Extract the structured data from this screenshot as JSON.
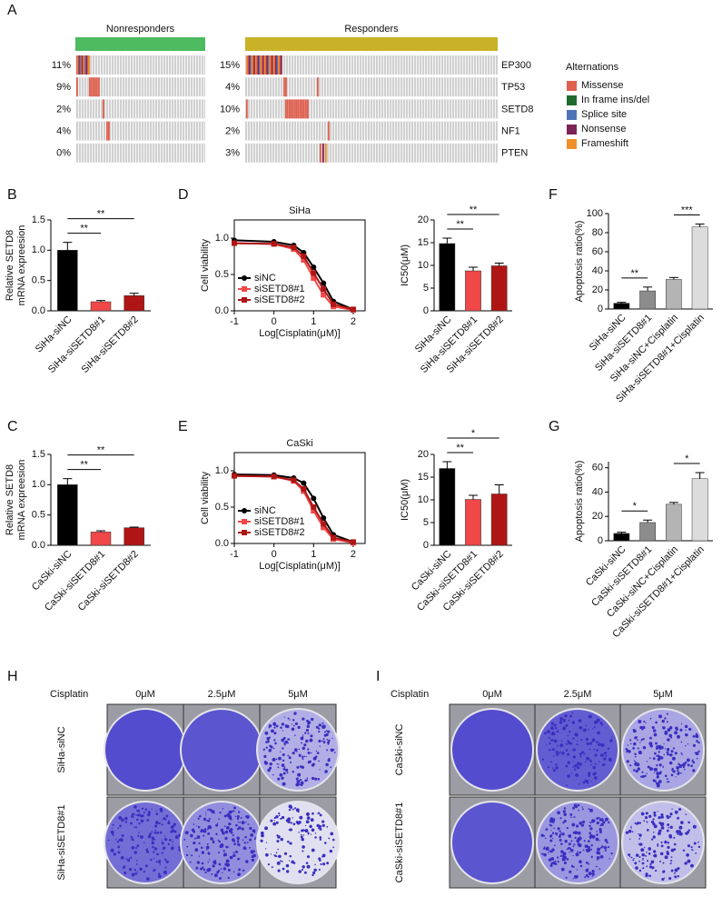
{
  "panel_A": {
    "label": "A",
    "groups": [
      {
        "name": "Nonresponders",
        "color": "#4dbb5f",
        "values": [
          11,
          9,
          2,
          4,
          0
        ],
        "value_labels": [
          "11%",
          "9%",
          "2%",
          "4%",
          "0%"
        ]
      },
      {
        "name": "Responders",
        "color": "#c9b227",
        "values": [
          15,
          4,
          10,
          2,
          3
        ],
        "value_labels": [
          "15%",
          "4%",
          "10%",
          "2%",
          "3%"
        ]
      }
    ],
    "genes": [
      "EP300",
      "TP53",
      "SETD8",
      "NF1",
      "PTEN"
    ],
    "legend": {
      "title": "Alternations",
      "items": [
        {
          "name": "Missense",
          "color": "#e0604f"
        },
        {
          "name": "In frame ins/del",
          "color": "#1e6b2e"
        },
        {
          "name": "Splice site",
          "color": "#4f73b8"
        },
        {
          "name": "Nonsense",
          "color": "#7b2257"
        },
        {
          "name": "Frameshift",
          "color": "#f0902a"
        }
      ]
    }
  },
  "chart_data": [
    {
      "panel": "B",
      "type": "bar",
      "ylabel": [
        "Relative SETD8",
        "mRNA expreesion"
      ],
      "categories": [
        "SiHa-siNC",
        "SiHa-siSETD8#1",
        "SiHa-siSETD8#2"
      ],
      "values": [
        1.0,
        0.15,
        0.25
      ],
      "errors": [
        0.13,
        0.02,
        0.04
      ],
      "colors": [
        "#000000",
        "#f04848",
        "#b01515"
      ],
      "ylim": [
        0,
        1.5
      ],
      "yticks": [
        {
          "value": 0,
          "label": "0.0"
        },
        0.5,
        {
          "value": 1,
          "label": "1.0"
        },
        1.5
      ],
      "significance": [
        {
          "label": "**",
          "pair": [
            0,
            1
          ]
        },
        {
          "label": "**",
          "pair": [
            0,
            2
          ]
        }
      ]
    },
    {
      "panel": "D",
      "type": "line",
      "title": "SiHa",
      "xlabel": "Log[Cisplatin(μM)]",
      "ylabel": [
        "Cell viability"
      ],
      "x": [
        -1,
        0,
        0.5,
        0.75,
        1,
        1.25,
        1.5,
        2
      ],
      "xlim": [
        -1,
        2.3
      ],
      "xticks": [
        -1,
        0,
        1,
        2
      ],
      "ylim": [
        0,
        1.25
      ],
      "yticks": [
        {
          "value": 0,
          "label": "0.0"
        },
        0.5,
        {
          "value": 1,
          "label": "1.0"
        }
      ],
      "series": [
        {
          "name": "siNC",
          "color": "#000000",
          "values": [
            0.97,
            0.95,
            0.9,
            0.8,
            0.6,
            0.38,
            0.13,
            0.02
          ]
        },
        {
          "name": "siSETD8#1",
          "color": "#f04848",
          "values": [
            0.93,
            0.92,
            0.85,
            0.7,
            0.45,
            0.22,
            0.06,
            0.01
          ]
        },
        {
          "name": "siSETD8#2",
          "color": "#b01515",
          "values": [
            0.93,
            0.92,
            0.87,
            0.75,
            0.52,
            0.3,
            0.09,
            0.02
          ]
        }
      ]
    },
    {
      "type": "bar",
      "ylabel": [
        "IC50(μM)"
      ],
      "categories": [
        "SiHa-siNC",
        "SiHa-siSETD8#1",
        "SiHa-siSETD8#2"
      ],
      "values": [
        14.8,
        8.8,
        9.9
      ],
      "errors": [
        1.2,
        0.8,
        0.6
      ],
      "colors": [
        "#000000",
        "#f04848",
        "#b01515"
      ],
      "ylim": [
        0,
        20
      ],
      "yticks": [
        0,
        5,
        10,
        15,
        20
      ],
      "significance": [
        {
          "label": "**",
          "pair": [
            0,
            1
          ]
        },
        {
          "label": "**",
          "pair": [
            0,
            2
          ]
        }
      ]
    },
    {
      "panel": "F",
      "type": "bar",
      "ylabel": [
        "Apoptosis ratio(%)"
      ],
      "categories": [
        "SiHa-siNC",
        "SiHa-siSETD8#1",
        "SiHa-siNC+Cisplatin",
        "SiHa-siSETD8#1+Cisplatin"
      ],
      "values": [
        6,
        19,
        31,
        86
      ],
      "errors": [
        1,
        4,
        2,
        3
      ],
      "colors": [
        "#000000",
        "#8c8c8c",
        "#b4b4b4",
        "#dcdcdc"
      ],
      "ylim": [
        0,
        100
      ],
      "yticks": [
        0,
        20,
        40,
        60,
        80,
        100
      ],
      "significance": [
        {
          "label": "**",
          "pair": [
            0,
            1
          ]
        },
        {
          "label": "***",
          "pair": [
            2,
            3
          ]
        }
      ]
    },
    {
      "panel": "C",
      "type": "bar",
      "ylabel": [
        "Relative SETD8",
        "mRNA expreesion"
      ],
      "categories": [
        "CaSki-siNC",
        "CaSki-siSETD8#1",
        "CaSki-siSETD8#2"
      ],
      "values": [
        1.0,
        0.22,
        0.29
      ],
      "errors": [
        0.1,
        0.02,
        0.01
      ],
      "colors": [
        "#000000",
        "#f04848",
        "#b01515"
      ],
      "ylim": [
        0,
        1.5
      ],
      "yticks": [
        {
          "value": 0,
          "label": "0.0"
        },
        0.5,
        {
          "value": 1,
          "label": "1.0"
        },
        1.5
      ],
      "significance": [
        {
          "label": "**",
          "pair": [
            0,
            1
          ]
        },
        {
          "label": "**",
          "pair": [
            0,
            2
          ]
        }
      ]
    },
    {
      "panel": "E",
      "type": "line",
      "title": "CaSki",
      "xlabel": "Log[Cisplatin(μM)]",
      "ylabel": [
        "Cell viability"
      ],
      "x": [
        -1,
        0,
        0.5,
        0.75,
        1,
        1.25,
        1.5,
        2
      ],
      "xlim": [
        -1,
        2.3
      ],
      "xticks": [
        -1,
        0,
        1,
        2
      ],
      "ylim": [
        0,
        1.25
      ],
      "yticks": [
        {
          "value": 0,
          "label": "0.0"
        },
        0.5,
        {
          "value": 1,
          "label": "1.0"
        }
      ],
      "series": [
        {
          "name": "siNC",
          "color": "#000000",
          "values": [
            0.95,
            0.94,
            0.9,
            0.83,
            0.62,
            0.35,
            0.12,
            0.02
          ]
        },
        {
          "name": "siSETD8#1",
          "color": "#f04848",
          "values": [
            0.93,
            0.92,
            0.86,
            0.72,
            0.45,
            0.22,
            0.06,
            0.01
          ]
        },
        {
          "name": "siSETD8#2",
          "color": "#b01515",
          "values": [
            0.93,
            0.92,
            0.87,
            0.75,
            0.5,
            0.27,
            0.08,
            0.02
          ]
        }
      ]
    },
    {
      "type": "bar",
      "ylabel": [
        "IC50(μM)"
      ],
      "categories": [
        "CaSki-siNC",
        "CaSki-siSETD8#1",
        "CaSki-siSETD8#2"
      ],
      "values": [
        16.9,
        10.1,
        11.3
      ],
      "errors": [
        1.5,
        0.9,
        2.0
      ],
      "colors": [
        "#000000",
        "#f04848",
        "#b01515"
      ],
      "ylim": [
        0,
        20
      ],
      "yticks": [
        0,
        5,
        10,
        15,
        20
      ],
      "significance": [
        {
          "label": "**",
          "pair": [
            0,
            1
          ]
        },
        {
          "label": "*",
          "pair": [
            0,
            2
          ]
        }
      ]
    },
    {
      "panel": "G",
      "type": "bar",
      "ylabel": [
        "Apoptosis ratio(%)"
      ],
      "categories": [
        "CaSki-siNC",
        "CaSki-siSETD8#1",
        "CaSki-siNC+Cisplatin",
        "CaSki-siSETD8#1+Cisplatin"
      ],
      "values": [
        6,
        15,
        30,
        51
      ],
      "errors": [
        1,
        2,
        1.5,
        5
      ],
      "colors": [
        "#000000",
        "#8c8c8c",
        "#b4b4b4",
        "#dcdcdc"
      ],
      "ylim": [
        0,
        65
      ],
      "yticks": [
        0,
        20,
        40,
        60
      ],
      "significance": [
        {
          "label": "*",
          "pair": [
            0,
            1
          ]
        },
        {
          "label": "*",
          "pair": [
            2,
            3
          ]
        }
      ]
    }
  ],
  "panel_H": {
    "label": "H",
    "row_header": "Cisplatin",
    "columns": [
      "0μM",
      "2.5μM",
      "5μM"
    ],
    "rows": [
      "SiHa-siNC",
      "SiHa-siSETD8#1"
    ]
  },
  "panel_I": {
    "label": "I",
    "row_header": "Cisplatin",
    "columns": [
      "0μM",
      "2.5μM",
      "5μM"
    ],
    "rows": [
      "CaSki-siNC",
      "CaSki-siSETD8#1"
    ]
  }
}
